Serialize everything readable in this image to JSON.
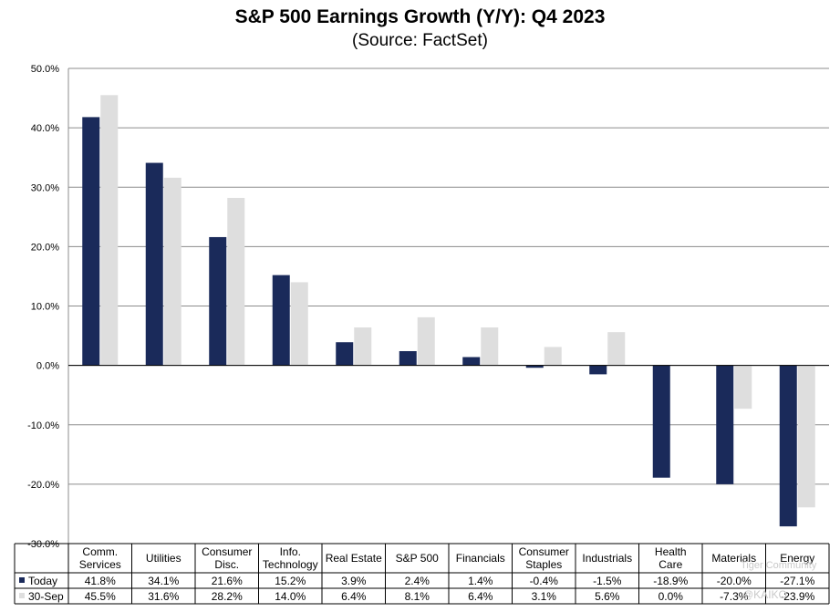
{
  "chart_data": {
    "type": "bar",
    "title": "S&P 500 Earnings Growth (Y/Y): Q4 2023",
    "subtitle": "(Source: FactSet)",
    "categories": [
      [
        "Comm.",
        "Services"
      ],
      [
        "Utilities"
      ],
      [
        "Consumer",
        "Disc."
      ],
      [
        "Info.",
        "Technology"
      ],
      [
        "Real Estate"
      ],
      [
        "S&P 500"
      ],
      [
        "Financials"
      ],
      [
        "Consumer",
        "Staples"
      ],
      [
        "Industrials"
      ],
      [
        "Health",
        "Care"
      ],
      [
        "Materials"
      ],
      [
        "Energy"
      ]
    ],
    "series": [
      {
        "name": "Today",
        "color": "#1a2a5a",
        "values": [
          41.8,
          34.1,
          21.6,
          15.2,
          3.9,
          2.4,
          1.4,
          -0.4,
          -1.5,
          -18.9,
          -20.0,
          -27.1
        ],
        "labels": [
          "41.8%",
          "34.1%",
          "21.6%",
          "15.2%",
          "3.9%",
          "2.4%",
          "1.4%",
          "-0.4%",
          "-1.5%",
          "-18.9%",
          "-20.0%",
          "-27.1%"
        ]
      },
      {
        "name": "30-Sep",
        "color": "#dedede",
        "values": [
          45.5,
          31.6,
          28.2,
          14.0,
          6.4,
          8.1,
          6.4,
          3.1,
          5.6,
          0.0,
          -7.3,
          -23.9
        ],
        "labels": [
          "45.5%",
          "31.6%",
          "28.2%",
          "14.0%",
          "6.4%",
          "8.1%",
          "6.4%",
          "3.1%",
          "5.6%",
          "0.0%",
          "-7.3%",
          "-23.9%"
        ]
      }
    ],
    "ylim": [
      -30,
      50
    ],
    "yticks": [
      50,
      40,
      30,
      20,
      10,
      0,
      -10,
      -20,
      -30
    ],
    "ytick_labels": [
      "50.0%",
      "40.0%",
      "30.0%",
      "20.0%",
      "10.0%",
      "0.0%",
      "-10.0%",
      "-20.0%",
      "-30.0%"
    ],
    "grid": true,
    "legend": "data-table"
  },
  "watermark": {
    "line1": "Tiger Community",
    "line2": "@KAIKO"
  }
}
